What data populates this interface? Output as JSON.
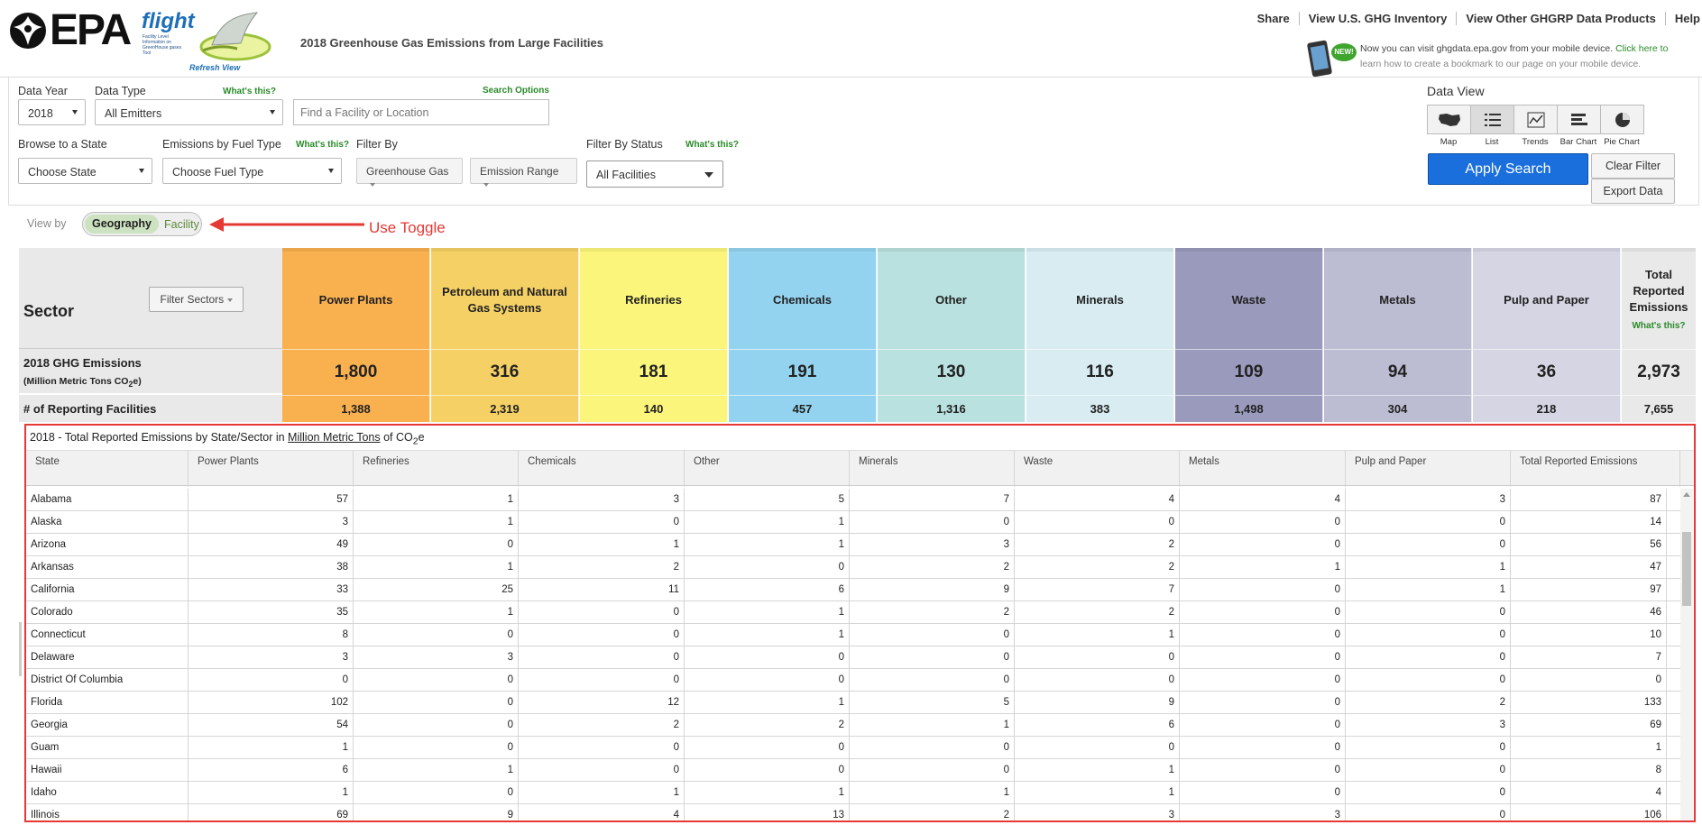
{
  "header": {
    "logo_text": "EPA",
    "flight_word": "flight",
    "flight_sub": "Facility Level Information on GreenHouse gases Tool",
    "refresh_label": "Refresh View",
    "page_title": "2018 Greenhouse Gas Emissions from Large Facilities",
    "links": [
      "Share",
      "View U.S. GHG Inventory",
      "View Other GHGRP Data Products",
      "Help"
    ],
    "mobile_badge": "NEW!",
    "mobile_text_a": "Now you can visit ghgdata.epa.gov from your mobile device.",
    "mobile_link": "Click here to",
    "mobile_text_b": "learn how to create a bookmark to our page on your mobile device."
  },
  "filters": {
    "data_year_label": "Data Year",
    "data_year_value": "2018",
    "data_type_label": "Data Type",
    "data_type_whats": "What's this?",
    "data_type_value": "All Emitters",
    "search_options": "Search Options",
    "search_placeholder": "Find a Facility or Location",
    "state_label": "Browse to a State",
    "state_value": "Choose State",
    "fuel_label": "Emissions by Fuel Type",
    "fuel_whats": "What's this?",
    "fuel_value": "Choose Fuel Type",
    "filter_by_label": "Filter By",
    "ghg_button": "Greenhouse Gas",
    "range_button": "Emission Range",
    "status_label": "Filter By Status",
    "status_whats": "What's this?",
    "status_value": "All Facilities"
  },
  "data_view": {
    "title": "Data View",
    "icons": [
      "map-icon",
      "list-icon",
      "trends-icon",
      "bar-chart-icon",
      "pie-chart-icon"
    ],
    "labels": [
      "Map",
      "List",
      "Trends",
      "Bar Chart",
      "Pie Chart"
    ],
    "active": "List",
    "apply": "Apply Search",
    "clear": "Clear Filter",
    "export": "Export Data"
  },
  "toggle": {
    "view_by": "View by",
    "geography": "Geography",
    "facility": "Facility",
    "annotation": "Use Toggle"
  },
  "sectors": {
    "title": "Sector",
    "filter_button": "Filter Sectors",
    "emissions_label": "2018 GHG Emissions",
    "emissions_units_a": "(Million Metric Tons CO",
    "emissions_units_sub": "2",
    "emissions_units_b": "e)",
    "facilities_label": "# of Reporting Facilities",
    "columns": [
      {
        "name": "Power Plants",
        "emissions": "1,800",
        "facilities": "1,388",
        "color": "#f9b04f"
      },
      {
        "name": "Petroleum and Natural Gas Systems",
        "emissions": "316",
        "facilities": "2,319",
        "color": "#f5d065"
      },
      {
        "name": "Refineries",
        "emissions": "181",
        "facilities": "140",
        "color": "#fbf57b"
      },
      {
        "name": "Chemicals",
        "emissions": "191",
        "facilities": "457",
        "color": "#93d3ef"
      },
      {
        "name": "Other",
        "emissions": "130",
        "facilities": "1,316",
        "color": "#b9e1df"
      },
      {
        "name": "Minerals",
        "emissions": "116",
        "facilities": "383",
        "color": "#d8ecf2"
      },
      {
        "name": "Waste",
        "emissions": "109",
        "facilities": "1,498",
        "color": "#9a9abd"
      },
      {
        "name": "Metals",
        "emissions": "94",
        "facilities": "304",
        "color": "#bcbcd3"
      },
      {
        "name": "Pulp and Paper",
        "emissions": "36",
        "facilities": "218",
        "color": "#d5d5e4"
      }
    ],
    "total": {
      "name_lines": [
        "Total",
        "Reported",
        "Emissions"
      ],
      "whats": "What's this?",
      "emissions": "2,973",
      "facilities": "7,655",
      "color": "#e9e9e9"
    }
  },
  "grid": {
    "title_a": "2018 - Total Reported Emissions by State/Sector in",
    "title_link": "Million Metric Tons",
    "title_b": "of CO",
    "title_sub": "2",
    "title_c": "e",
    "headers": [
      "State",
      "Power Plants",
      "Refineries",
      "Chemicals",
      "Other",
      "Minerals",
      "Waste",
      "Metals",
      "Pulp and Paper",
      "Total Reported Emissions"
    ],
    "rows": [
      [
        "Alabama",
        "57",
        "1",
        "3",
        "5",
        "7",
        "4",
        "4",
        "3",
        "87"
      ],
      [
        "Alaska",
        "3",
        "1",
        "0",
        "1",
        "0",
        "0",
        "0",
        "0",
        "14"
      ],
      [
        "Arizona",
        "49",
        "0",
        "1",
        "1",
        "3",
        "2",
        "0",
        "0",
        "56"
      ],
      [
        "Arkansas",
        "38",
        "1",
        "2",
        "0",
        "2",
        "2",
        "1",
        "1",
        "47"
      ],
      [
        "California",
        "33",
        "25",
        "11",
        "6",
        "9",
        "7",
        "0",
        "1",
        "97"
      ],
      [
        "Colorado",
        "35",
        "1",
        "0",
        "1",
        "2",
        "2",
        "0",
        "0",
        "46"
      ],
      [
        "Connecticut",
        "8",
        "0",
        "0",
        "1",
        "0",
        "1",
        "0",
        "0",
        "10"
      ],
      [
        "Delaware",
        "3",
        "3",
        "0",
        "0",
        "0",
        "0",
        "0",
        "0",
        "7"
      ],
      [
        "District Of Columbia",
        "0",
        "0",
        "0",
        "0",
        "0",
        "0",
        "0",
        "0",
        "0"
      ],
      [
        "Florida",
        "102",
        "0",
        "12",
        "1",
        "5",
        "9",
        "0",
        "2",
        "133"
      ],
      [
        "Georgia",
        "54",
        "0",
        "2",
        "2",
        "1",
        "6",
        "0",
        "3",
        "69"
      ],
      [
        "Guam",
        "1",
        "0",
        "0",
        "0",
        "0",
        "0",
        "0",
        "0",
        "1"
      ],
      [
        "Hawaii",
        "6",
        "1",
        "0",
        "0",
        "0",
        "1",
        "0",
        "0",
        "8"
      ],
      [
        "Idaho",
        "1",
        "0",
        "1",
        "1",
        "1",
        "1",
        "0",
        "0",
        "4"
      ],
      [
        "Illinois",
        "69",
        "9",
        "4",
        "13",
        "2",
        "3",
        "3",
        "0",
        "106"
      ]
    ]
  }
}
